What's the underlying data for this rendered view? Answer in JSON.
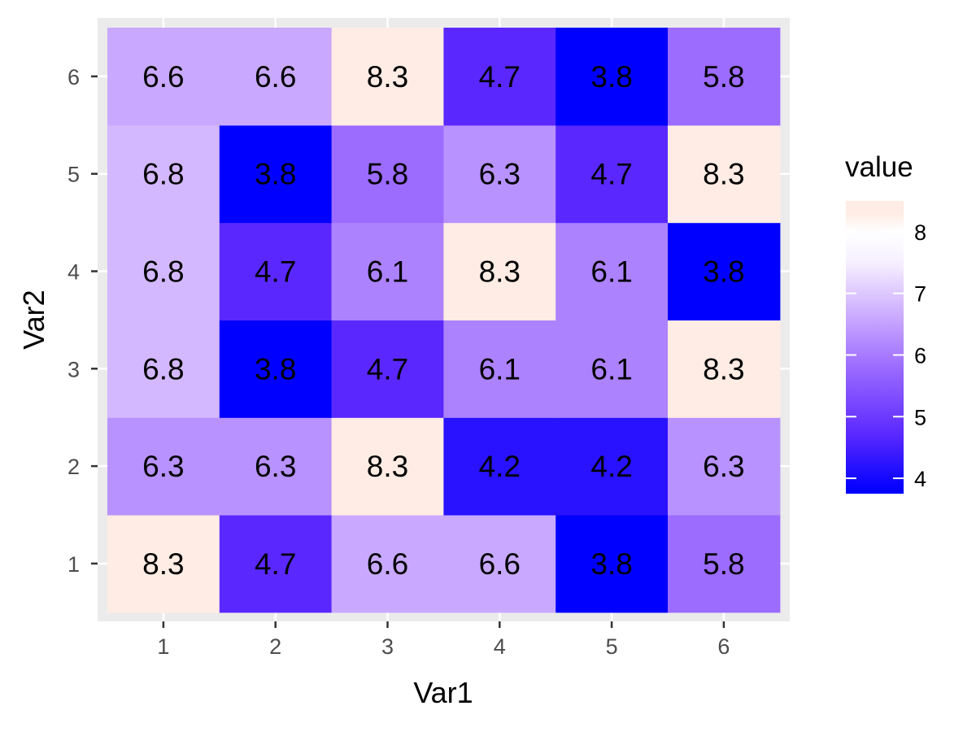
{
  "chart_data": {
    "type": "heatmap",
    "xlabel": "Var1",
    "ylabel": "Var2",
    "x_categories": [
      "1",
      "2",
      "3",
      "4",
      "5",
      "6"
    ],
    "y_categories": [
      "1",
      "2",
      "3",
      "4",
      "5",
      "6"
    ],
    "cells": [
      {
        "x": 1,
        "y": 1,
        "value": 8.3,
        "label": "8.3"
      },
      {
        "x": 2,
        "y": 1,
        "value": 4.7,
        "label": "4.7"
      },
      {
        "x": 3,
        "y": 1,
        "value": 6.6,
        "label": "6.6"
      },
      {
        "x": 4,
        "y": 1,
        "value": 6.6,
        "label": "6.6"
      },
      {
        "x": 5,
        "y": 1,
        "value": 3.8,
        "label": "3.8"
      },
      {
        "x": 6,
        "y": 1,
        "value": 5.8,
        "label": "5.8"
      },
      {
        "x": 1,
        "y": 2,
        "value": 6.3,
        "label": "6.3"
      },
      {
        "x": 2,
        "y": 2,
        "value": 6.3,
        "label": "6.3"
      },
      {
        "x": 3,
        "y": 2,
        "value": 8.3,
        "label": "8.3"
      },
      {
        "x": 4,
        "y": 2,
        "value": 4.2,
        "label": "4.2"
      },
      {
        "x": 5,
        "y": 2,
        "value": 4.2,
        "label": "4.2"
      },
      {
        "x": 6,
        "y": 2,
        "value": 6.3,
        "label": "6.3"
      },
      {
        "x": 1,
        "y": 3,
        "value": 6.8,
        "label": "6.8"
      },
      {
        "x": 2,
        "y": 3,
        "value": 3.8,
        "label": "3.8"
      },
      {
        "x": 3,
        "y": 3,
        "value": 4.7,
        "label": "4.7"
      },
      {
        "x": 4,
        "y": 3,
        "value": 6.1,
        "label": "6.1"
      },
      {
        "x": 5,
        "y": 3,
        "value": 6.1,
        "label": "6.1"
      },
      {
        "x": 6,
        "y": 3,
        "value": 8.3,
        "label": "8.3"
      },
      {
        "x": 1,
        "y": 4,
        "value": 6.8,
        "label": "6.8"
      },
      {
        "x": 2,
        "y": 4,
        "value": 4.7,
        "label": "4.7"
      },
      {
        "x": 3,
        "y": 4,
        "value": 6.1,
        "label": "6.1"
      },
      {
        "x": 4,
        "y": 4,
        "value": 8.3,
        "label": "8.3"
      },
      {
        "x": 5,
        "y": 4,
        "value": 6.1,
        "label": "6.1"
      },
      {
        "x": 6,
        "y": 4,
        "value": 3.8,
        "label": "3.8"
      },
      {
        "x": 1,
        "y": 5,
        "value": 6.8,
        "label": "6.8"
      },
      {
        "x": 2,
        "y": 5,
        "value": 3.8,
        "label": "3.8"
      },
      {
        "x": 3,
        "y": 5,
        "value": 5.8,
        "label": "5.8"
      },
      {
        "x": 4,
        "y": 5,
        "value": 6.3,
        "label": "6.3"
      },
      {
        "x": 5,
        "y": 5,
        "value": 4.7,
        "label": "4.7"
      },
      {
        "x": 6,
        "y": 5,
        "value": 8.3,
        "label": "8.3"
      },
      {
        "x": 1,
        "y": 6,
        "value": 6.6,
        "label": "6.6"
      },
      {
        "x": 2,
        "y": 6,
        "value": 6.6,
        "label": "6.6"
      },
      {
        "x": 3,
        "y": 6,
        "value": 8.3,
        "label": "8.3"
      },
      {
        "x": 4,
        "y": 6,
        "value": 4.7,
        "label": "4.7"
      },
      {
        "x": 5,
        "y": 6,
        "value": 3.8,
        "label": "3.8"
      },
      {
        "x": 6,
        "y": 6,
        "value": 5.8,
        "label": "5.8"
      }
    ],
    "legend": {
      "title": "value",
      "position": "right",
      "range": [
        3.75,
        8.5
      ],
      "breaks": [
        {
          "value": 4,
          "label": "4"
        },
        {
          "value": 5,
          "label": "5"
        },
        {
          "value": 6,
          "label": "6"
        },
        {
          "value": 7,
          "label": "7"
        },
        {
          "value": 8,
          "label": "8"
        }
      ],
      "gradient": [
        {
          "value": 3.8,
          "color": "#0000ff"
        },
        {
          "value": 4.7,
          "color": "#5a28ff"
        },
        {
          "value": 5.8,
          "color": "#9c6bff"
        },
        {
          "value": 6.8,
          "color": "#d4b8ff"
        },
        {
          "value": 7.5,
          "color": "#f6f0ff"
        },
        {
          "value": 8.0,
          "color": "#ffffff"
        },
        {
          "value": 8.3,
          "color": "#ffece4"
        }
      ]
    },
    "colors": {
      "panel_background": "#ebebeb",
      "grid": "#ffffff"
    }
  }
}
